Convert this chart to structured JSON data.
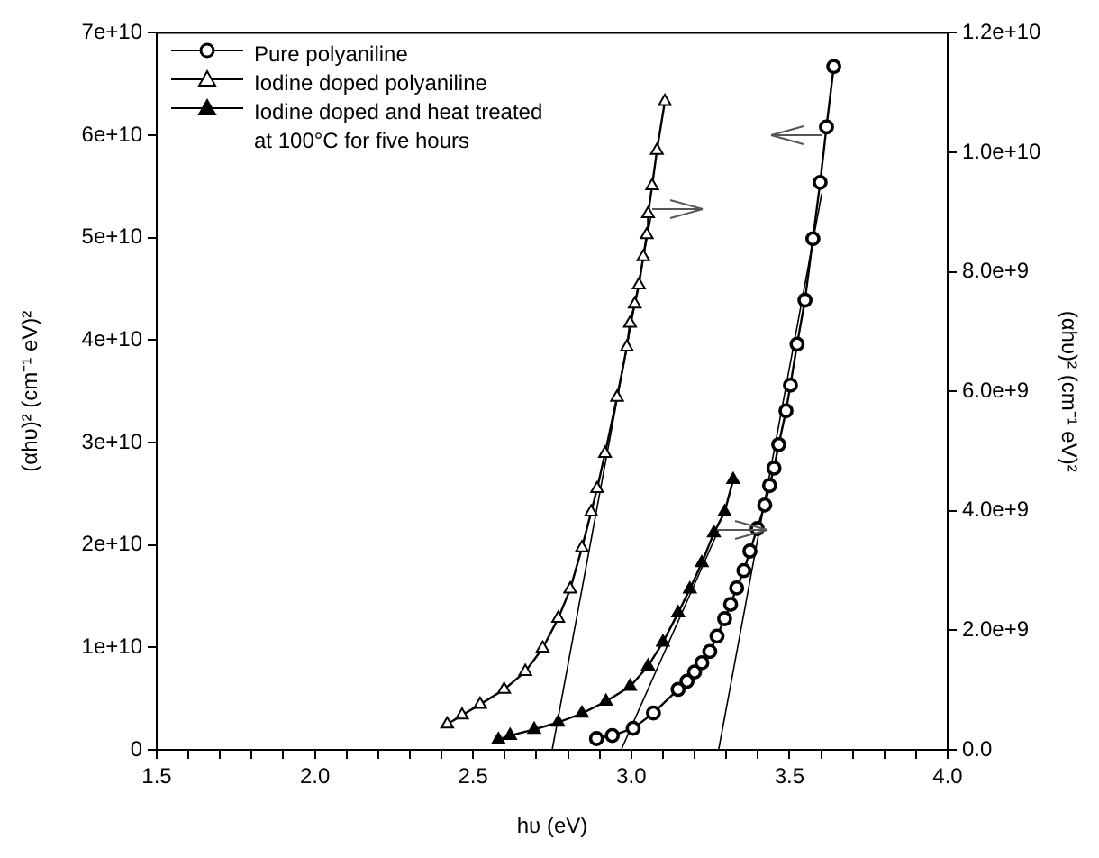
{
  "chart_data": {
    "type": "line",
    "xlabel": "hυ (eV)",
    "ylabel": "(αhυ)² (cm⁻¹ eV)²",
    "y2label": "(αhυ)² (cm⁻¹ eV)²",
    "xlim": [
      1.5,
      4.0
    ],
    "xticks": [
      1.5,
      {
        "value": 1.6,
        "label": null
      },
      {
        "value": 1.7,
        "label": null
      },
      {
        "value": 1.8,
        "label": null
      },
      {
        "value": 1.9,
        "label": null
      },
      "2.0",
      {
        "value": 2.1,
        "label": null
      },
      {
        "value": 2.2,
        "label": null
      },
      {
        "value": 2.3,
        "label": null
      },
      {
        "value": 2.4,
        "label": null
      },
      2.5,
      {
        "value": 2.6,
        "label": null
      },
      {
        "value": 2.7,
        "label": null
      },
      {
        "value": 2.8,
        "label": null
      },
      {
        "value": 2.9,
        "label": null
      },
      {
        "value": 3.0,
        "label": "3.0"
      },
      {
        "value": 3.1,
        "label": null
      },
      {
        "value": 3.2,
        "label": null
      },
      {
        "value": 3.3,
        "label": null
      },
      {
        "value": 3.4,
        "label": null
      },
      3.5,
      {
        "value": 3.6,
        "label": null
      },
      {
        "value": 3.7,
        "label": null
      },
      {
        "value": 3.8,
        "label": null
      },
      {
        "value": 3.9,
        "label": null
      },
      {
        "value": 4.0,
        "label": "4.0"
      }
    ],
    "ylim": [
      0,
      70000000000.0
    ],
    "yticks": [
      0,
      {
        "value": 10000000000.0,
        "label": "1e+10"
      },
      {
        "value": 20000000000.0,
        "label": "2e+10"
      },
      {
        "value": 30000000000.0,
        "label": "3e+10"
      },
      {
        "value": 40000000000.0,
        "label": "4e+10"
      },
      {
        "value": 50000000000.0,
        "label": "5e+10"
      },
      {
        "value": 60000000000.0,
        "label": "6e+10"
      },
      {
        "value": 70000000000.0,
        "label": "7e+10"
      }
    ],
    "y2lim": [
      0,
      12000000000.0
    ],
    "y2ticks": [
      {
        "value": 0,
        "label": "0.0"
      },
      {
        "value": 2000000000.0,
        "label": "2.0e+9"
      },
      {
        "value": 4000000000.0,
        "label": "4.0e+9"
      },
      {
        "value": 6000000000.0,
        "label": "6.0e+9"
      },
      {
        "value": 8000000000.0,
        "label": "8.0e+9"
      },
      {
        "value": 10000000000.0,
        "label": "1.0e+10"
      },
      {
        "value": 12000000000.0,
        "label": "1.2e+10"
      }
    ],
    "grid": false,
    "legend": "top left",
    "line_style": "solid",
    "series": [
      {
        "name": "Pure polyaniline",
        "color": "#000000",
        "marker": "circle",
        "axis": "y",
        "x": [
          2.89,
          2.94,
          3.006,
          3.07,
          3.148,
          3.176,
          3.2,
          3.223,
          3.248,
          3.271,
          3.295,
          3.314,
          3.333,
          3.356,
          3.375,
          3.398,
          3.422,
          3.437,
          3.451,
          3.466,
          3.489,
          3.503,
          3.524,
          3.549,
          3.574,
          3.597,
          3.617,
          3.64
        ],
        "values": [
          1100000000.0,
          1400000000.0,
          2100000000.0,
          3600000000.0,
          5900000000.0,
          6700000000.0,
          7600000000.0,
          8500000000.0,
          9600000000.0,
          11100000000.0,
          12800000000.0,
          14200000000.0,
          15800000000.0,
          17500000000.0,
          19400000000.0,
          21600000000.0,
          23900000000.0,
          25800000000.0,
          27500000000.0,
          29800000000.0,
          33100000000.0,
          35600000000.0,
          39600000000.0,
          43900000000.0,
          49900000000.0,
          55400000000.0,
          60800000000.0,
          66700000000.0
        ]
      },
      {
        "name": "Iodine doped polyaniline",
        "color": "#000000",
        "marker": "triangle",
        "axis": "y2",
        "x": [
          2.418,
          2.465,
          2.522,
          2.598,
          2.665,
          2.72,
          2.769,
          2.807,
          2.844,
          2.873,
          2.892,
          2.917,
          2.955,
          2.986,
          2.996,
          3.011,
          3.024,
          3.038,
          3.049,
          3.053,
          3.066,
          3.081,
          3.106
        ],
        "values": [
          430000000.0,
          580000000.0,
          760000000.0,
          1010000000.0,
          1310000000.0,
          1700000000.0,
          2200000000.0,
          2690000000.0,
          3380000000.0,
          3980000000.0,
          4370000000.0,
          4960000000.0,
          5900000000.0,
          6740000000.0,
          7140000000.0,
          7460000000.0,
          7780000000.0,
          8250000000.0,
          8620000000.0,
          8970000000.0,
          9440000000.0,
          10030000000.0,
          10850000000.0
        ]
      },
      {
        "name": "Iodine doped and heat treated\nat 100°C for five hours",
        "color": "#000000",
        "marker": "triangle",
        "axis": "y2",
        "x": [
          2.58,
          2.617,
          2.693,
          2.769,
          2.844,
          2.92,
          2.996,
          3.053,
          3.1,
          3.148,
          3.185,
          3.223,
          3.261,
          3.295,
          3.322
        ],
        "values": [
          170000000.0,
          240000000.0,
          340000000.0,
          460000000.0,
          610000000.0,
          810000000.0,
          1060000000.0,
          1400000000.0,
          1800000000.0,
          2290000000.0,
          2690000000.0,
          3130000000.0,
          3630000000.0,
          3980000000.0,
          4520000000.0
        ]
      },
      {
        "type": "line",
        "color": "#000000",
        "marker": "none",
        "axis": "y",
        "x": [
          3.276,
          3.602
        ],
        "values": [
          0,
          54300000000.0
        ]
      },
      {
        "type": "line",
        "color": "#000000",
        "marker": "none",
        "axis": "y2",
        "x": [
          2.75,
          3.062
        ],
        "values": [
          0,
          8920000000.0
        ]
      },
      {
        "type": "line",
        "color": "#000000",
        "marker": "none",
        "axis": "y2",
        "x": [
          2.968,
          3.276
        ],
        "values": [
          0,
          3680000000.0
        ]
      }
    ]
  }
}
